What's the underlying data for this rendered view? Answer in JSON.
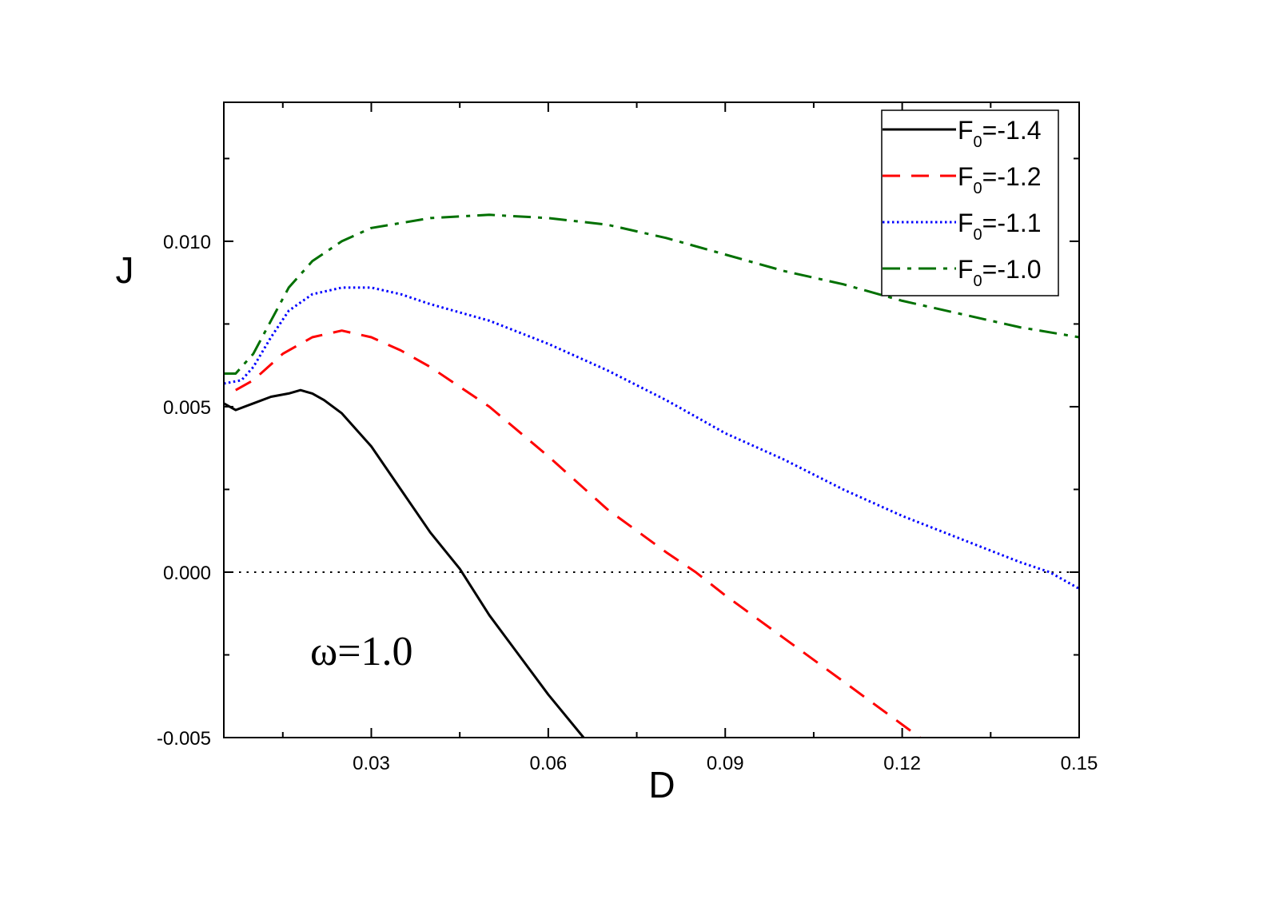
{
  "chart_data": {
    "type": "line",
    "title": "",
    "xlabel": "D",
    "ylabel": "J",
    "xlim": [
      0.005,
      0.15
    ],
    "ylim": [
      -0.005,
      0.0142
    ],
    "xticks": [
      0.03,
      0.06,
      0.09,
      0.12,
      0.15
    ],
    "xtick_labels": [
      "0.03",
      "0.06",
      "0.09",
      "0.12",
      "0.15"
    ],
    "yticks": [
      -0.005,
      0.0,
      0.005,
      0.01
    ],
    "ytick_labels": [
      "-0.005",
      "0.000",
      "0.005",
      "0.010"
    ],
    "reference_line": {
      "y": 0.0,
      "style": "dotted",
      "color": "#000000"
    },
    "annotation": "ω=1.0",
    "legend_position": "top-right",
    "series": [
      {
        "name": "F0=-1.4",
        "label_main": "F",
        "label_sub": "0",
        "label_rest": "=-1.4",
        "color": "#000000",
        "style": "solid",
        "x": [
          0.005,
          0.007,
          0.01,
          0.013,
          0.016,
          0.018,
          0.02,
          0.022,
          0.025,
          0.03,
          0.035,
          0.04,
          0.045,
          0.05,
          0.055,
          0.06,
          0.066
        ],
        "y": [
          0.0051,
          0.0049,
          0.0051,
          0.0053,
          0.0054,
          0.0055,
          0.0054,
          0.0052,
          0.0048,
          0.0038,
          0.0025,
          0.0012,
          0.0001,
          -0.0013,
          -0.0025,
          -0.0037,
          -0.005
        ]
      },
      {
        "name": "F0=-1.2",
        "label_main": "F",
        "label_sub": "0",
        "label_rest": "=-1.2",
        "color": "#ff0000",
        "style": "dashed",
        "x": [
          0.007,
          0.01,
          0.015,
          0.02,
          0.025,
          0.03,
          0.035,
          0.04,
          0.05,
          0.06,
          0.07,
          0.08,
          0.085,
          0.09,
          0.1,
          0.11,
          0.123
        ],
        "y": [
          0.0055,
          0.0058,
          0.0066,
          0.0071,
          0.0073,
          0.0071,
          0.0067,
          0.0062,
          0.005,
          0.0035,
          0.0019,
          0.0006,
          0.0,
          -0.0007,
          -0.002,
          -0.0033,
          -0.005
        ]
      },
      {
        "name": "F0=-1.1",
        "label_main": "F",
        "label_sub": "0",
        "label_rest": "=-1.1",
        "color": "#0000ff",
        "style": "dotted",
        "x": [
          0.005,
          0.008,
          0.01,
          0.013,
          0.016,
          0.02,
          0.025,
          0.03,
          0.035,
          0.04,
          0.05,
          0.06,
          0.07,
          0.08,
          0.09,
          0.1,
          0.11,
          0.12,
          0.13,
          0.14,
          0.145,
          0.15
        ],
        "y": [
          0.0057,
          0.0058,
          0.0062,
          0.0071,
          0.0079,
          0.0084,
          0.0086,
          0.0086,
          0.0084,
          0.0081,
          0.0076,
          0.0069,
          0.0061,
          0.0052,
          0.0042,
          0.0034,
          0.0025,
          0.0017,
          0.001,
          0.0003,
          0.0,
          -0.0005
        ]
      },
      {
        "name": "F0=-1.0",
        "label_main": "F",
        "label_sub": "0",
        "label_rest": "=-1.0",
        "color": "#007000",
        "style": "dashdot",
        "x": [
          0.005,
          0.007,
          0.01,
          0.013,
          0.016,
          0.02,
          0.025,
          0.03,
          0.04,
          0.05,
          0.06,
          0.07,
          0.08,
          0.09,
          0.1,
          0.11,
          0.12,
          0.13,
          0.14,
          0.15
        ],
        "y": [
          0.006,
          0.006,
          0.0066,
          0.0076,
          0.0086,
          0.0094,
          0.01,
          0.0104,
          0.0107,
          0.0108,
          0.0107,
          0.0105,
          0.0101,
          0.0096,
          0.0091,
          0.0087,
          0.0082,
          0.0078,
          0.0074,
          0.0071
        ]
      }
    ]
  }
}
